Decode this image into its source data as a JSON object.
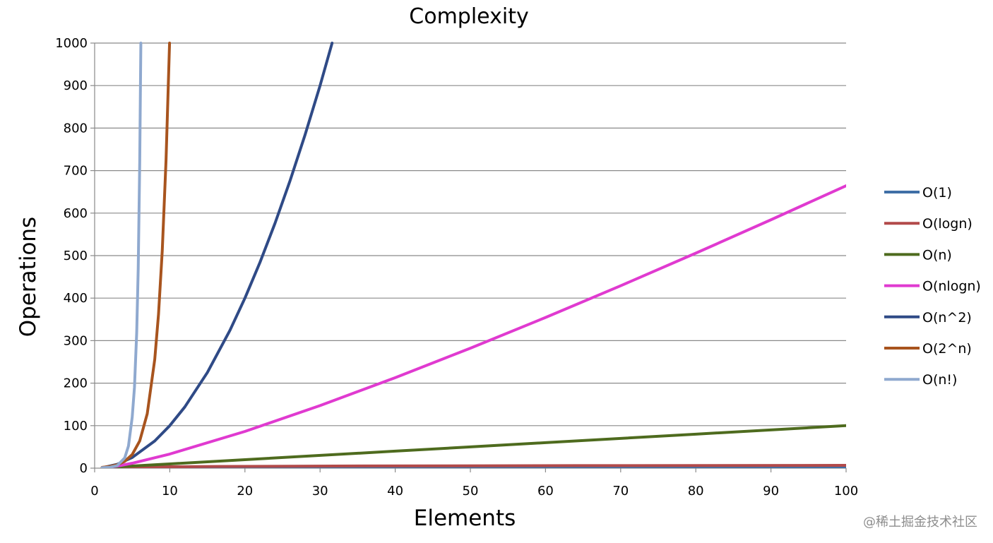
{
  "chart_data": {
    "type": "line",
    "title": "Complexity",
    "xlabel": "Elements",
    "ylabel": "Operations",
    "xlim": [
      0,
      100
    ],
    "ylim": [
      0,
      1000
    ],
    "x_ticks": [
      "0",
      "10",
      "20",
      "30",
      "40",
      "50",
      "60",
      "70",
      "80",
      "90",
      "100"
    ],
    "y_ticks": [
      "0",
      "100",
      "200",
      "300",
      "400",
      "500",
      "600",
      "700",
      "800",
      "900",
      "1000"
    ],
    "grid": "horizontal",
    "legend_position": "right",
    "series": [
      {
        "name": "O(1)",
        "color": "#3f6fa6",
        "points": [
          [
            1,
            1
          ],
          [
            100,
            1
          ]
        ]
      },
      {
        "name": "O(logn)",
        "color": "#b24a4a",
        "points": [
          [
            1,
            0
          ],
          [
            2,
            1
          ],
          [
            4,
            2
          ],
          [
            8,
            3
          ],
          [
            16,
            4
          ],
          [
            32,
            5
          ],
          [
            64,
            6
          ],
          [
            100,
            6.6
          ]
        ]
      },
      {
        "name": "O(n)",
        "color": "#4e6b1e",
        "points": [
          [
            1,
            1
          ],
          [
            10,
            10
          ],
          [
            20,
            20
          ],
          [
            40,
            40
          ],
          [
            60,
            60
          ],
          [
            80,
            80
          ],
          [
            100,
            100
          ]
        ]
      },
      {
        "name": "O(nlogn)",
        "color": "#e03ad0",
        "points": [
          [
            1,
            0
          ],
          [
            3,
            4.8
          ],
          [
            5,
            11.6
          ],
          [
            10,
            33.2
          ],
          [
            20,
            86.4
          ],
          [
            30,
            147.2
          ],
          [
            40,
            212.9
          ],
          [
            50,
            282.2
          ],
          [
            60,
            354.4
          ],
          [
            70,
            429.1
          ],
          [
            80,
            505.8
          ],
          [
            90,
            584.3
          ],
          [
            100,
            664.4
          ]
        ]
      },
      {
        "name": "O(n^2)",
        "color": "#2f4a86",
        "points": [
          [
            1,
            1
          ],
          [
            3,
            9
          ],
          [
            5,
            25
          ],
          [
            8,
            64
          ],
          [
            10,
            100
          ],
          [
            12,
            144
          ],
          [
            15,
            225
          ],
          [
            18,
            324
          ],
          [
            20,
            400
          ],
          [
            22,
            484
          ],
          [
            24,
            576
          ],
          [
            26,
            676
          ],
          [
            28,
            784
          ],
          [
            30,
            900
          ],
          [
            31.6,
            1000
          ]
        ]
      },
      {
        "name": "O(2^n)",
        "color": "#a8541e",
        "points": [
          [
            1,
            2
          ],
          [
            2,
            4
          ],
          [
            3,
            8
          ],
          [
            4,
            16
          ],
          [
            5,
            32
          ],
          [
            6,
            64
          ],
          [
            7,
            128
          ],
          [
            8,
            256
          ],
          [
            8.5,
            362
          ],
          [
            9,
            512
          ],
          [
            9.5,
            724
          ],
          [
            9.97,
            1000
          ]
        ]
      },
      {
        "name": "O(n!)",
        "color": "#8fa9cf",
        "points": [
          [
            1,
            1
          ],
          [
            2,
            2
          ],
          [
            3,
            6
          ],
          [
            4,
            24
          ],
          [
            4.5,
            52
          ],
          [
            5,
            120
          ],
          [
            5.3,
            190
          ],
          [
            5.6,
            320
          ],
          [
            5.8,
            470
          ],
          [
            6,
            720
          ],
          [
            6.15,
            1000
          ]
        ]
      }
    ]
  },
  "watermark": "@稀土掘金技术社区"
}
